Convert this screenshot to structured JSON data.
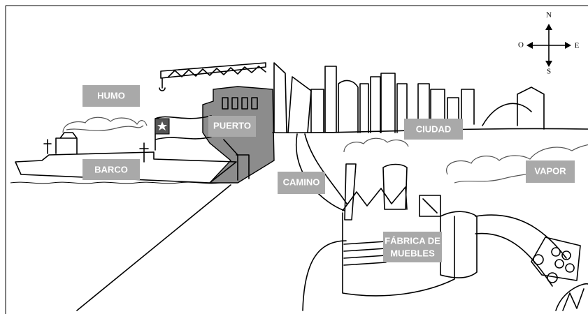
{
  "labels": {
    "humo": "HUMO",
    "puerto": "PUERTO",
    "ciudad": "CIUDAD",
    "barco": "BARCO",
    "camino": "CAMINO",
    "vapor": "VAPOR",
    "fabrica": [
      "FÁBRICA DE",
      "MUEBLES"
    ]
  },
  "compass": {
    "north": "N",
    "south": "S",
    "west": "O",
    "east": "E"
  }
}
